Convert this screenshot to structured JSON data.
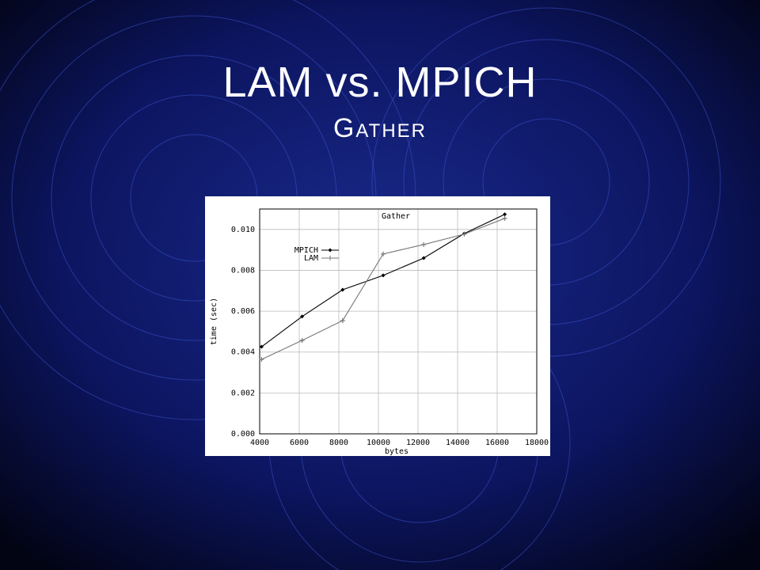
{
  "slide": {
    "title": "LAM vs. MPICH",
    "subtitle": "Gather"
  },
  "chart_data": {
    "type": "line",
    "title": "Gather",
    "xlabel": "bytes",
    "ylabel": "time (sec)",
    "xlim": [
      4000,
      18000
    ],
    "xticks": [
      4000,
      6000,
      8000,
      10000,
      12000,
      14000,
      16000,
      18000
    ],
    "ylim": [
      0,
      0.011
    ],
    "yticks": [
      {
        "value": 0,
        "label": "0.000"
      },
      {
        "value": 0.002,
        "label": "0.002"
      },
      {
        "value": 0.004,
        "label": "0.004"
      },
      {
        "value": 0.006,
        "label": "0.006"
      },
      {
        "value": 0.008,
        "label": "0.008"
      },
      {
        "value": 0.01,
        "label": "0.010"
      }
    ],
    "grid": true,
    "legend": "upper left",
    "x": [
      4096,
      6144,
      8192,
      10240,
      12288,
      14336,
      16384
    ],
    "series": [
      {
        "name": "MPICH",
        "color": "#000000",
        "marker": "diamond",
        "values": [
          0.00426,
          0.00574,
          0.00705,
          0.00775,
          0.0086,
          0.0098,
          0.01074
        ]
      },
      {
        "name": "LAM",
        "color": "#777777",
        "marker": "plus",
        "values": [
          0.00364,
          0.00457,
          0.00554,
          0.0088,
          0.00926,
          0.00977,
          0.01054
        ]
      }
    ]
  }
}
